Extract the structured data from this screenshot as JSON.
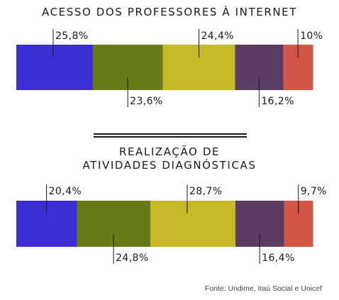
{
  "chart_data": [
    {
      "type": "bar",
      "orientation": "horizontal-stacked",
      "title": "ACESSO DOS PROFESSORES À INTERNET",
      "values": [
        25.8,
        23.6,
        24.4,
        16.2,
        10
      ],
      "labels": [
        "25,8%",
        "23,6%",
        "24,4%",
        "16,2%",
        "10%"
      ],
      "label_positions": [
        "above",
        "below",
        "above",
        "below",
        "above"
      ],
      "colors": [
        "#3b2ed4",
        "#667a17",
        "#c8b828",
        "#5b3c63",
        "#d05545"
      ]
    },
    {
      "type": "bar",
      "orientation": "horizontal-stacked",
      "title_lines": [
        "REALIZAÇÃO DE",
        "ATIVIDADES DIAGNÓSTICAS"
      ],
      "values": [
        20.4,
        24.8,
        28.7,
        16.4,
        9.7
      ],
      "labels": [
        "20,4%",
        "24,8%",
        "28,7%",
        "16,4%",
        "9,7%"
      ],
      "label_positions": [
        "above",
        "below",
        "above",
        "below",
        "above"
      ],
      "colors": [
        "#3b2ed4",
        "#667a17",
        "#c8b828",
        "#5b3c63",
        "#d05545"
      ]
    }
  ],
  "source": "Fonte: Undime, Itaú Social e Unicef"
}
